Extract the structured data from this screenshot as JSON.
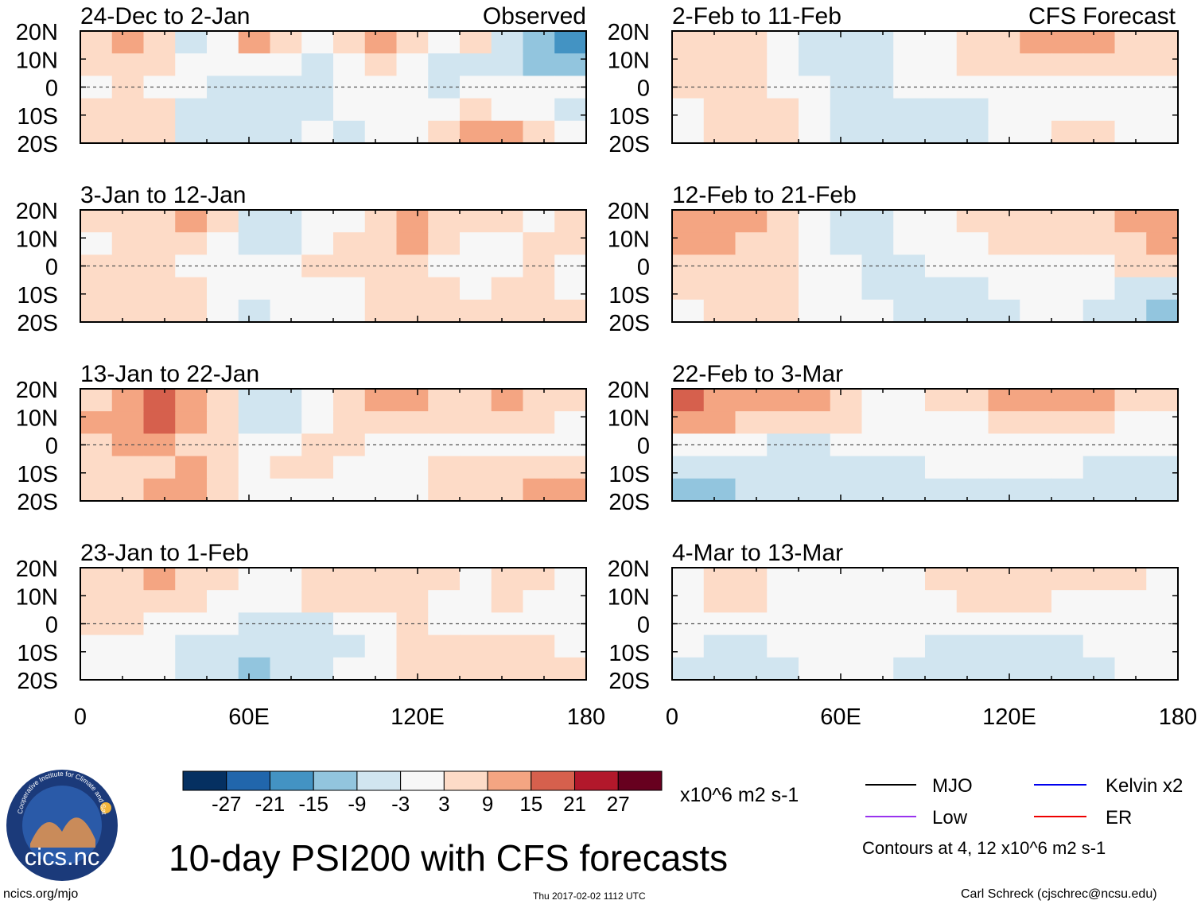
{
  "chart_data": {
    "type": "heatmap",
    "title": "10-day PSI200 with CFS forecasts",
    "x_ticks": [
      "0",
      "60E",
      "120E",
      "180"
    ],
    "y_ticks": [
      "20N",
      "10N",
      "0",
      "10S",
      "20S"
    ],
    "xlim": [
      0,
      180
    ],
    "ylim": [
      -20,
      20
    ],
    "header_observed": "Observed",
    "header_forecast": "CFS Forecast",
    "panels_observed": [
      {
        "period": "24-Dec to 2-Jan",
        "cells": [
          [
            6,
            10,
            8,
            -4,
            -3,
            9,
            4,
            -2,
            4,
            10,
            6,
            2,
            4,
            -6,
            -14,
            -20
          ],
          [
            4,
            6,
            4,
            2,
            -3,
            2,
            0,
            -8,
            2,
            4,
            -2,
            -6,
            -4,
            -8,
            -12,
            -10
          ],
          [
            2,
            3,
            0,
            -2,
            -5,
            -4,
            -4,
            -6,
            -2,
            0,
            -3,
            -4,
            -3,
            -2,
            -3,
            -2
          ],
          [
            6,
            4,
            6,
            -4,
            -8,
            -4,
            -6,
            -4,
            -2,
            -3,
            -2,
            2,
            4,
            2,
            -3,
            -4
          ],
          [
            8,
            6,
            8,
            -6,
            -6,
            -4,
            -4,
            -2,
            -4,
            -2,
            2,
            4,
            12,
            14,
            4,
            -2
          ]
        ]
      },
      {
        "period": "3-Jan to 12-Jan",
        "cells": [
          [
            4,
            8,
            6,
            10,
            4,
            -4,
            -6,
            0,
            2,
            8,
            12,
            6,
            4,
            4,
            2,
            4
          ],
          [
            2,
            4,
            4,
            6,
            2,
            -4,
            -6,
            2,
            4,
            8,
            10,
            8,
            2,
            2,
            4,
            4
          ],
          [
            6,
            8,
            4,
            2,
            0,
            -2,
            2,
            4,
            6,
            4,
            4,
            2,
            0,
            2,
            4,
            2
          ],
          [
            8,
            6,
            6,
            4,
            0,
            -2,
            0,
            2,
            2,
            4,
            4,
            4,
            2,
            4,
            6,
            2
          ],
          [
            6,
            4,
            4,
            6,
            -3,
            -4,
            -2,
            0,
            2,
            4,
            4,
            8,
            4,
            6,
            8,
            4
          ]
        ]
      },
      {
        "period": "13-Jan to 22-Jan",
        "cells": [
          [
            8,
            12,
            18,
            14,
            4,
            -8,
            -4,
            2,
            8,
            12,
            10,
            6,
            8,
            10,
            8,
            8
          ],
          [
            10,
            14,
            16,
            12,
            6,
            -8,
            -6,
            2,
            6,
            8,
            6,
            4,
            4,
            6,
            4,
            2
          ],
          [
            6,
            10,
            12,
            8,
            4,
            0,
            2,
            4,
            4,
            2,
            2,
            2,
            2,
            0,
            0,
            2
          ],
          [
            4,
            6,
            8,
            10,
            4,
            2,
            4,
            4,
            2,
            0,
            0,
            4,
            6,
            4,
            6,
            8
          ],
          [
            4,
            4,
            10,
            12,
            4,
            2,
            2,
            2,
            2,
            2,
            0,
            4,
            6,
            8,
            10,
            12
          ]
        ]
      },
      {
        "period": "23-Jan to 1-Feb",
        "cells": [
          [
            6,
            8,
            10,
            8,
            4,
            0,
            2,
            4,
            6,
            8,
            6,
            4,
            2,
            4,
            4,
            2
          ],
          [
            6,
            6,
            8,
            6,
            2,
            -2,
            0,
            4,
            4,
            6,
            4,
            2,
            2,
            4,
            2,
            2
          ],
          [
            4,
            4,
            2,
            0,
            -2,
            -4,
            -4,
            -4,
            -2,
            2,
            4,
            2,
            2,
            2,
            2,
            2
          ],
          [
            2,
            2,
            0,
            -4,
            -6,
            -8,
            -6,
            -4,
            -4,
            -2,
            6,
            8,
            6,
            6,
            4,
            2
          ],
          [
            2,
            2,
            0,
            -6,
            -8,
            -10,
            -6,
            -4,
            -2,
            0,
            6,
            6,
            8,
            6,
            4,
            4
          ]
        ]
      }
    ],
    "panels_forecast": [
      {
        "period": "2-Feb to 11-Feb",
        "cells": [
          [
            4,
            6,
            6,
            2,
            -4,
            -8,
            -6,
            -2,
            2,
            6,
            8,
            10,
            10,
            10,
            8,
            8
          ],
          [
            4,
            6,
            4,
            0,
            -4,
            -8,
            -6,
            -2,
            0,
            4,
            6,
            6,
            6,
            6,
            6,
            4
          ],
          [
            4,
            6,
            4,
            2,
            -2,
            -4,
            -4,
            -2,
            -2,
            0,
            2,
            2,
            2,
            2,
            2,
            2
          ],
          [
            2,
            4,
            6,
            4,
            0,
            -4,
            -4,
            -6,
            -6,
            -4,
            -2,
            0,
            0,
            2,
            2,
            2
          ],
          [
            2,
            4,
            6,
            4,
            0,
            -4,
            -6,
            -8,
            -8,
            -6,
            -2,
            2,
            4,
            4,
            2,
            2
          ]
        ]
      },
      {
        "period": "12-Feb to 21-Feb",
        "cells": [
          [
            14,
            12,
            10,
            6,
            -2,
            -6,
            -4,
            -2,
            2,
            4,
            6,
            6,
            6,
            8,
            10,
            14
          ],
          [
            12,
            10,
            8,
            4,
            -2,
            -6,
            -4,
            -2,
            0,
            2,
            4,
            4,
            6,
            6,
            8,
            10
          ],
          [
            6,
            8,
            6,
            4,
            0,
            -2,
            -4,
            -4,
            -2,
            0,
            2,
            2,
            2,
            2,
            4,
            4
          ],
          [
            4,
            6,
            6,
            4,
            2,
            -2,
            -4,
            -6,
            -6,
            -4,
            -2,
            0,
            0,
            -2,
            -4,
            -6
          ],
          [
            2,
            4,
            6,
            4,
            2,
            0,
            -2,
            -6,
            -8,
            -6,
            -4,
            -2,
            -2,
            -4,
            -8,
            -12
          ]
        ]
      },
      {
        "period": "22-Feb to 3-Mar",
        "cells": [
          [
            18,
            14,
            12,
            14,
            10,
            6,
            2,
            2,
            4,
            8,
            10,
            12,
            12,
            10,
            8,
            6
          ],
          [
            12,
            10,
            8,
            8,
            6,
            4,
            2,
            0,
            0,
            2,
            4,
            4,
            4,
            4,
            2,
            2
          ],
          [
            0,
            0,
            -2,
            -4,
            -4,
            -2,
            -2,
            -2,
            0,
            0,
            0,
            0,
            0,
            0,
            0,
            0
          ],
          [
            -8,
            -8,
            -6,
            -4,
            -4,
            -6,
            -6,
            -4,
            -2,
            -2,
            -2,
            -2,
            -2,
            -4,
            -4,
            -4
          ],
          [
            -14,
            -12,
            -8,
            -6,
            -4,
            -6,
            -8,
            -6,
            -4,
            -4,
            -4,
            -4,
            -4,
            -6,
            -6,
            -6
          ]
        ]
      },
      {
        "period": "4-Mar to 13-Mar",
        "cells": [
          [
            2,
            4,
            4,
            2,
            0,
            -2,
            0,
            2,
            4,
            6,
            6,
            6,
            4,
            4,
            4,
            2
          ],
          [
            2,
            4,
            4,
            2,
            0,
            -2,
            0,
            2,
            2,
            4,
            4,
            4,
            2,
            2,
            2,
            2
          ],
          [
            0,
            0,
            0,
            0,
            0,
            0,
            0,
            0,
            0,
            0,
            0,
            0,
            0,
            0,
            0,
            0
          ],
          [
            -2,
            -4,
            -4,
            -2,
            0,
            0,
            0,
            -2,
            -4,
            -4,
            -6,
            -6,
            -4,
            -2,
            -2,
            -2
          ],
          [
            -4,
            -6,
            -6,
            -4,
            -2,
            -2,
            -2,
            -4,
            -4,
            -6,
            -6,
            -6,
            -4,
            -4,
            -2,
            -2
          ]
        ]
      }
    ],
    "colorbar": {
      "unit": "x10^6 m2 s-1",
      "bounds": [
        -27,
        -21,
        -15,
        -9,
        -3,
        3,
        9,
        15,
        21,
        27
      ],
      "labels": [
        "-27",
        "-21",
        "-15",
        "-9",
        "-3",
        "3",
        "9",
        "15",
        "21",
        "27"
      ],
      "colors": [
        "#053061",
        "#2166ac",
        "#4393c3",
        "#92c5de",
        "#d1e5f0",
        "#f7f7f7",
        "#fddbc7",
        "#f4a582",
        "#d6604d",
        "#b2182b",
        "#67001f"
      ]
    },
    "legend": {
      "items": [
        {
          "label": "MJO",
          "color": "#000000"
        },
        {
          "label": "Kelvin x2",
          "color": "#0000ee"
        },
        {
          "label": "Low",
          "color": "#9933ee"
        },
        {
          "label": "ER",
          "color": "#ee0000"
        }
      ],
      "note": "Contours at 4, 12 x10^6 m2 s-1"
    }
  },
  "footer": {
    "logo_text": "cics.nc",
    "logo_ring_text": "Cooperative Institute for Climate and Satellites",
    "url": "ncics.org/mjo",
    "timestamp": "Thu 2017-02-02 1112 UTC",
    "author": "Carl Schreck (cjschrec@ncsu.edu)"
  }
}
